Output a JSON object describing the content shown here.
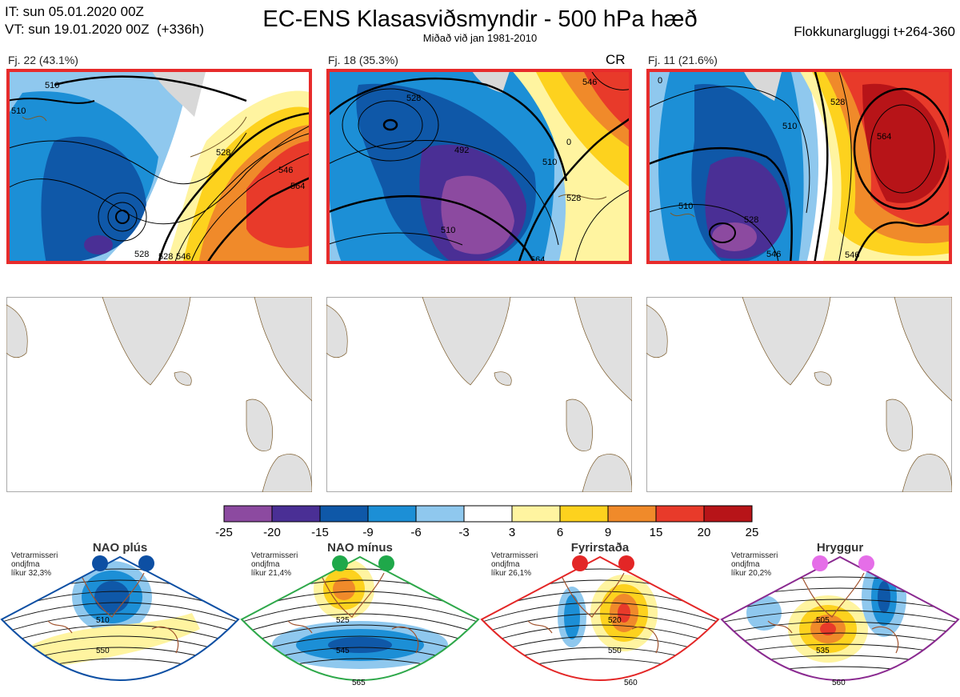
{
  "header": {
    "it_line": "IT: sun 05.01.2020 00Z",
    "vt_line": "VT: sun 19.01.2020 00Z  (+336h)",
    "title": "EC-ENS Klasasviðsmyndir - 500 hPa hæð",
    "subtitle": "Miðað við jan 1981-2010",
    "window": "Flokkunargluggi t+264-360"
  },
  "clusters": [
    {
      "label": "Fj. 22 (43.1%)",
      "extra": ""
    },
    {
      "label": "Fj. 18 (35.3%)",
      "extra": "CR"
    },
    {
      "label": "Fj. 11 (21.6%)",
      "extra": ""
    }
  ],
  "contour_labels": {
    "c1": [
      "510",
      "528",
      "546",
      "564",
      "528",
      "546",
      "510",
      "528"
    ],
    "c2": [
      "510",
      "492",
      "528",
      "546",
      "510",
      "528",
      "564",
      "0"
    ],
    "c3": [
      "510",
      "528",
      "546",
      "564",
      "510",
      "528",
      "546",
      "0"
    ]
  },
  "legend": {
    "ticks": [
      "-25",
      "-20",
      "-15",
      "-9",
      "-6",
      "-3",
      "3",
      "6",
      "9",
      "15",
      "20",
      "25"
    ],
    "colors": [
      "#8c4aa0",
      "#4a2f95",
      "#0f58a8",
      "#1c8fd6",
      "#8fc8ee",
      "#ffffff",
      "#fff4a0",
      "#fdd21e",
      "#f08a2a",
      "#e83a2a",
      "#b71418"
    ]
  },
  "regimes": [
    {
      "name": "NAO plús",
      "desc": [
        "Vetrarmisseri",
        "ondjfma",
        "líkur 32,3%"
      ],
      "color": "#0d4fa3",
      "dot": "#0d4fa3",
      "labels": [
        "510",
        "550"
      ]
    },
    {
      "name": "NAO mínus",
      "desc": [
        "Vetrarmisseri",
        "ondjfma",
        "líkur 21,4%"
      ],
      "color": "#2ea84a",
      "dot": "#1fa84a",
      "labels": [
        "525",
        "545",
        "565"
      ]
    },
    {
      "name": "Fyrirstaða",
      "desc": [
        "Vetrarmisseri",
        "ondjfma",
        "líkur 26,1%"
      ],
      "color": "#e32626",
      "dot": "#e32626",
      "labels": [
        "520",
        "550",
        "560"
      ]
    },
    {
      "name": "Hryggur",
      "desc": [
        "Vetrarmisseri",
        "ondjfma",
        "líkur 20,2%"
      ],
      "color": "#8a2a90",
      "dot": "#e56ee8",
      "labels": [
        "505",
        "535",
        "560"
      ]
    }
  ]
}
